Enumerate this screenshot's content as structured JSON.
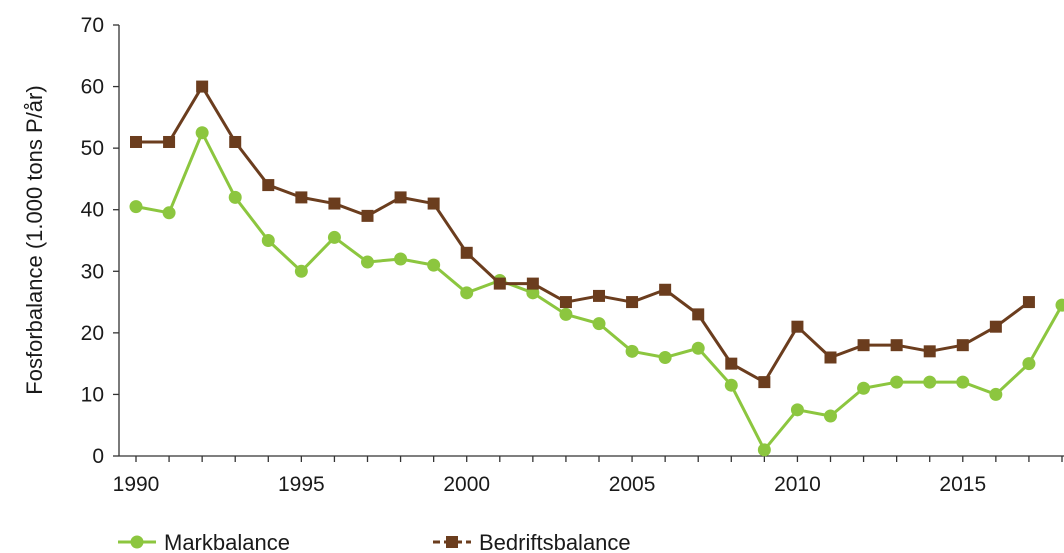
{
  "chart_data": {
    "type": "line",
    "title": "",
    "xlabel": "",
    "ylabel": "Fosforbalance (1.000 tons P/år)",
    "xlim": [
      1990,
      2018
    ],
    "ylim": [
      0,
      70
    ],
    "x_ticks": [
      "1990",
      "1995",
      "2000",
      "2005",
      "2010",
      "2015"
    ],
    "y_ticks": [
      "0",
      "10",
      "20",
      "30",
      "40",
      "50",
      "60",
      "70"
    ],
    "grid": false,
    "legend_position": "bottom-left",
    "x": [
      1990,
      1991,
      1992,
      1993,
      1994,
      1995,
      1996,
      1997,
      1998,
      1999,
      2000,
      2001,
      2002,
      2003,
      2004,
      2005,
      2006,
      2007,
      2008,
      2009,
      2010,
      2011,
      2012,
      2013,
      2014,
      2015,
      2016,
      2017,
      2018
    ],
    "series": [
      {
        "name": "Markbalance",
        "color": "#8cc63f",
        "marker": "circle",
        "values": [
          40.5,
          39.5,
          52.5,
          42,
          35,
          30,
          35.5,
          31.5,
          32,
          31,
          26.5,
          28.5,
          26.5,
          23,
          21.5,
          17,
          16,
          17.5,
          11.5,
          1,
          7.5,
          6.5,
          11,
          12,
          12,
          12,
          10,
          15,
          24.5
        ]
      },
      {
        "name": "Bedriftsbalance",
        "color": "#6b3d1e",
        "marker": "square",
        "values": [
          51,
          51,
          60,
          51,
          44,
          42,
          41,
          39,
          42,
          41,
          33,
          28,
          28,
          25,
          26,
          25,
          27,
          23,
          15,
          12,
          21,
          16,
          18,
          18,
          17,
          18,
          21,
          25,
          null
        ]
      }
    ]
  }
}
